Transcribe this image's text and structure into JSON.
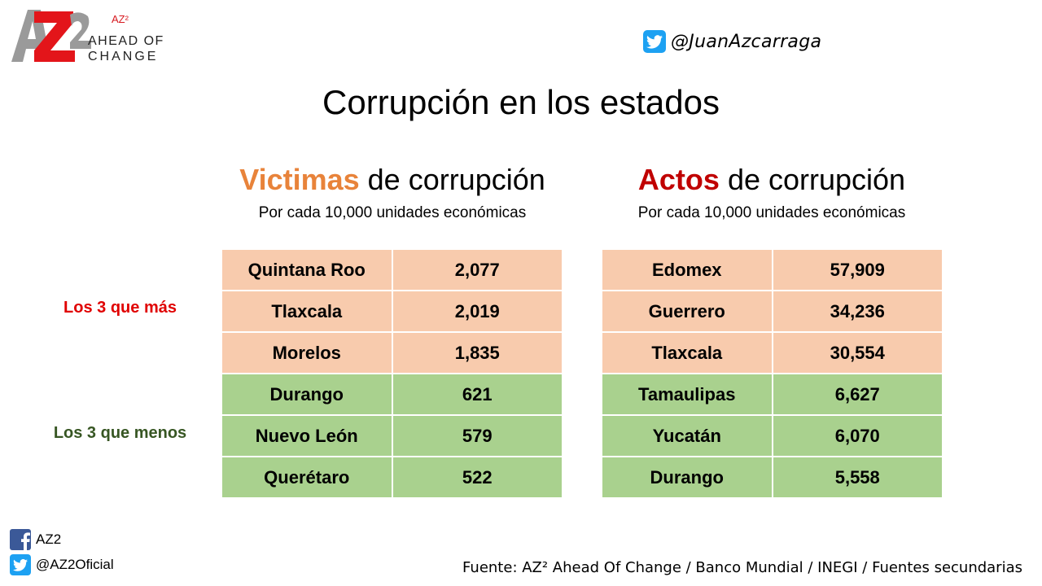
{
  "logo": {
    "mark": "AZ2",
    "superscript": "AZ²",
    "line1": "AHEAD OF",
    "line2": "CHANGE"
  },
  "header": {
    "twitter_handle": "@JuanAzcarraga"
  },
  "title": "Corrupción en los estados",
  "victimas": {
    "heading_highlight": "Victimas",
    "heading_rest": " de corrupción",
    "subtitle": "Por cada 10,000 unidades económicas",
    "rows": [
      {
        "state": "Quintana Roo",
        "value": "2,077",
        "group": "top"
      },
      {
        "state": "Tlaxcala",
        "value": "2,019",
        "group": "top"
      },
      {
        "state": "Morelos",
        "value": "1,835",
        "group": "top"
      },
      {
        "state": "Durango",
        "value": "621",
        "group": "bottom"
      },
      {
        "state": "Nuevo León",
        "value": "579",
        "group": "bottom"
      },
      {
        "state": "Querétaro",
        "value": "522",
        "group": "bottom"
      }
    ]
  },
  "actos": {
    "heading_highlight": "Actos",
    "heading_rest": " de corrupción",
    "subtitle": "Por cada 10,000 unidades económicas",
    "rows": [
      {
        "state": "Edomex",
        "value": "57,909",
        "group": "top"
      },
      {
        "state": "Guerrero",
        "value": "34,236",
        "group": "top"
      },
      {
        "state": "Tlaxcala",
        "value": "30,554",
        "group": "top"
      },
      {
        "state": "Tamaulipas",
        "value": "6,627",
        "group": "bottom"
      },
      {
        "state": "Yucatán",
        "value": "6,070",
        "group": "bottom"
      },
      {
        "state": "Durango",
        "value": "5,558",
        "group": "bottom"
      }
    ]
  },
  "groups": {
    "top_label": "Los 3 que más",
    "bottom_label": "Los 3 que menos"
  },
  "colors": {
    "victimas_accent": "#e8833a",
    "actos_accent": "#c00000",
    "top_fill": "#f8cbad",
    "bottom_fill": "#a9d18e",
    "top_label": "#e00000",
    "bottom_label": "#375623"
  },
  "footer": {
    "facebook_label": "AZ2",
    "twitter_label": "@AZ2Oficial",
    "source": "Fuente: AZ² Ahead Of Change / Banco Mundial / INEGI / Fuentes secundarias",
    "icons": [
      "facebook-icon",
      "twitter-icon"
    ]
  }
}
